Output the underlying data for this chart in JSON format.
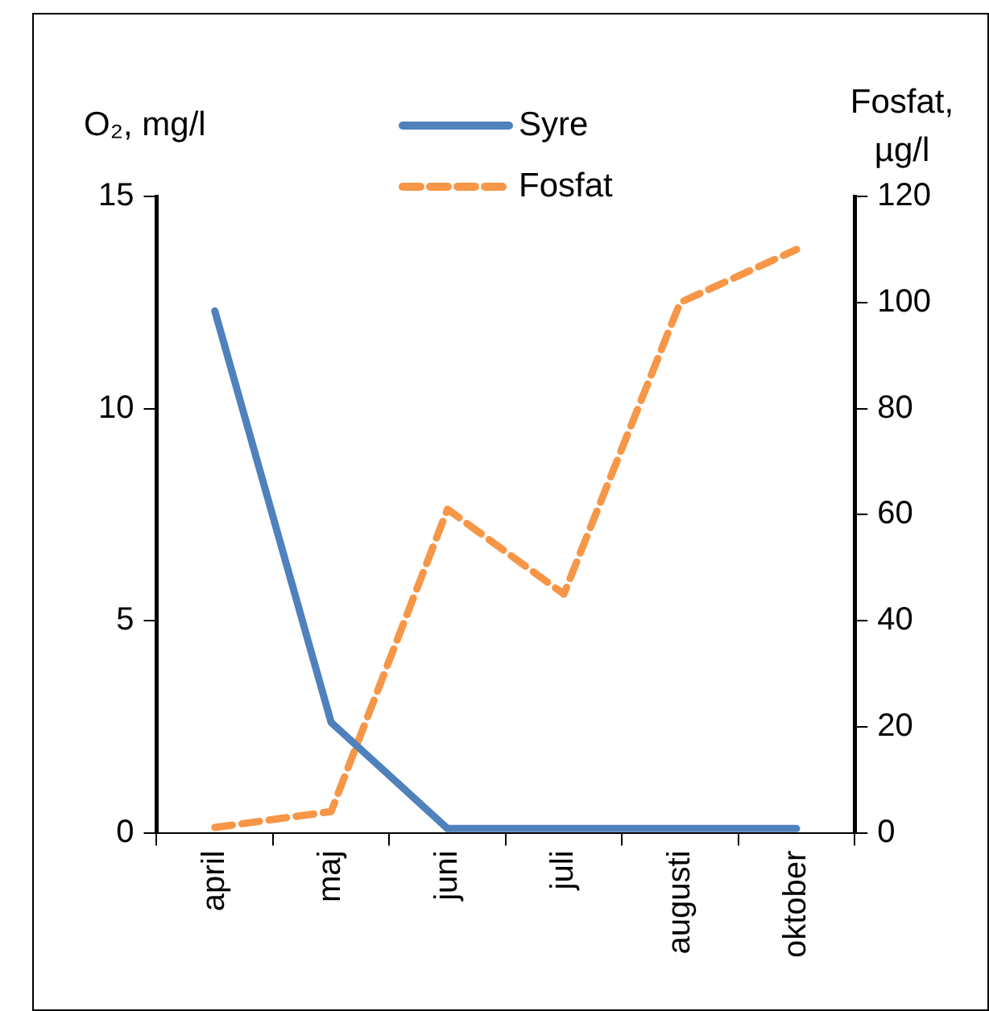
{
  "chart_data": {
    "type": "line",
    "ylabel": "O₂, mg/l",
    "y2label": "Fosfat, µg/l",
    "categories": [
      "april",
      "maj",
      "juni",
      "juli",
      "augusti",
      "oktober"
    ],
    "series": [
      {
        "name": "Syre",
        "color": "#4f81bd",
        "values": [
          12.3,
          2.6,
          0.1,
          0.1,
          0.1,
          0.1
        ],
        "line_style": "solid"
      },
      {
        "name": "Fosfat",
        "color": "#f79646",
        "values": [
          1,
          4,
          61,
          45,
          100,
          110
        ],
        "axis": "y2",
        "line_style": "dashed"
      }
    ],
    "ylim": [
      0,
      15
    ],
    "yticks": [
      0,
      5,
      10,
      15
    ],
    "y2lim": [
      0,
      120
    ],
    "y2ticks": [
      0,
      20,
      40,
      60,
      80,
      100,
      120
    ],
    "grid": false,
    "legend": "top",
    "marker": "none"
  }
}
